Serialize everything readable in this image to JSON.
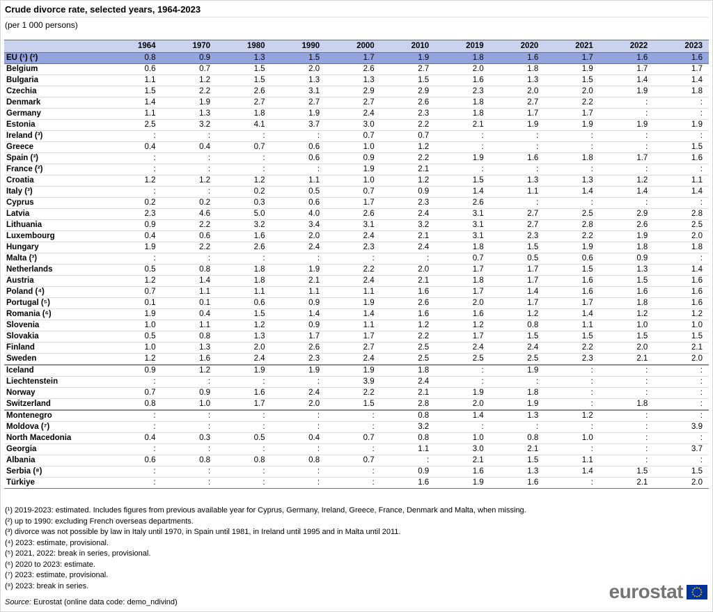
{
  "header": {
    "title": "Crude divorce rate, selected years, 1964-2023",
    "subtitle": "(per 1 000 persons)"
  },
  "chart_data": {
    "type": "table",
    "unit": "per 1 000 persons",
    "missing_symbol": ":",
    "columns": [
      "1964",
      "1970",
      "1980",
      "1990",
      "2000",
      "2010",
      "2019",
      "2020",
      "2021",
      "2022",
      "2023"
    ],
    "rows": [
      {
        "label": "EU (¹) (²)",
        "highlight": true,
        "values": [
          "0.8",
          "0.9",
          "1.3",
          "1.5",
          "1.7",
          "1.9",
          "1.8",
          "1.6",
          "1.7",
          "1.6",
          "1.6"
        ]
      },
      {
        "label": "Belgium",
        "values": [
          "0.6",
          "0.7",
          "1.5",
          "2.0",
          "2.6",
          "2.7",
          "2.0",
          "1.8",
          "1.9",
          "1.7",
          "1.7"
        ]
      },
      {
        "label": "Bulgaria",
        "values": [
          "1.1",
          "1.2",
          "1.5",
          "1.3",
          "1.3",
          "1.5",
          "1.6",
          "1.3",
          "1.5",
          "1.4",
          "1.4"
        ]
      },
      {
        "label": "Czechia",
        "values": [
          "1.5",
          "2.2",
          "2.6",
          "3.1",
          "2.9",
          "2.9",
          "2.3",
          "2.0",
          "2.0",
          "1.9",
          "1.8"
        ]
      },
      {
        "label": "Denmark",
        "values": [
          "1.4",
          "1.9",
          "2.7",
          "2.7",
          "2.7",
          "2.6",
          "1.8",
          "2.7",
          "2.2",
          ":",
          ":"
        ]
      },
      {
        "label": "Germany",
        "values": [
          "1.1",
          "1.3",
          "1.8",
          "1.9",
          "2.4",
          "2.3",
          "1.8",
          "1.7",
          "1.7",
          ":",
          ":"
        ]
      },
      {
        "label": "Estonia",
        "values": [
          "2.5",
          "3.2",
          "4.1",
          "3.7",
          "3.0",
          "2.2",
          "2.1",
          "1.9",
          "1.9",
          "1.9",
          "1.9"
        ]
      },
      {
        "label": "Ireland (³)",
        "values": [
          ":",
          ":",
          ":",
          ":",
          "0.7",
          "0.7",
          ":",
          ":",
          ":",
          ":",
          ":"
        ]
      },
      {
        "label": "Greece",
        "values": [
          "0.4",
          "0.4",
          "0.7",
          "0.6",
          "1.0",
          "1.2",
          ":",
          ":",
          ":",
          ":",
          "1.5"
        ]
      },
      {
        "label": "Spain (³)",
        "values": [
          ":",
          ":",
          ":",
          "0.6",
          "0.9",
          "2.2",
          "1.9",
          "1.6",
          "1.8",
          "1.7",
          "1.6"
        ]
      },
      {
        "label": "France (²)",
        "values": [
          ":",
          ":",
          ":",
          ":",
          "1.9",
          "2.1",
          ":",
          ":",
          ":",
          ":",
          ":"
        ]
      },
      {
        "label": "Croatia",
        "values": [
          "1.2",
          "1.2",
          "1.2",
          "1.1",
          "1.0",
          "1.2",
          "1.5",
          "1.3",
          "1.3",
          "1.2",
          "1.1"
        ]
      },
      {
        "label": "Italy (³)",
        "values": [
          ":",
          ":",
          "0.2",
          "0.5",
          "0.7",
          "0.9",
          "1.4",
          "1.1",
          "1.4",
          "1.4",
          "1.4"
        ]
      },
      {
        "label": "Cyprus",
        "values": [
          "0.2",
          "0.2",
          "0.3",
          "0.6",
          "1.7",
          "2.3",
          "2.6",
          ":",
          ":",
          ":",
          ":"
        ]
      },
      {
        "label": "Latvia",
        "values": [
          "2.3",
          "4.6",
          "5.0",
          "4.0",
          "2.6",
          "2.4",
          "3.1",
          "2.7",
          "2.5",
          "2.9",
          "2.8"
        ]
      },
      {
        "label": "Lithuania",
        "values": [
          "0.9",
          "2.2",
          "3.2",
          "3.4",
          "3.1",
          "3.2",
          "3.1",
          "2.7",
          "2.8",
          "2.6",
          "2.5"
        ]
      },
      {
        "label": "Luxembourg",
        "values": [
          "0.4",
          "0.6",
          "1.6",
          "2.0",
          "2.4",
          "2.1",
          "3.1",
          "2.3",
          "2.2",
          "1.9",
          "2.0"
        ]
      },
      {
        "label": "Hungary",
        "values": [
          "1.9",
          "2.2",
          "2.6",
          "2.4",
          "2.3",
          "2.4",
          "1.8",
          "1.5",
          "1.9",
          "1.8",
          "1.8"
        ]
      },
      {
        "label": "Malta (³)",
        "values": [
          ":",
          ":",
          ":",
          ":",
          ":",
          ":",
          "0.7",
          "0.5",
          "0.6",
          "0.9",
          ":"
        ]
      },
      {
        "label": "Netherlands",
        "values": [
          "0.5",
          "0.8",
          "1.8",
          "1.9",
          "2.2",
          "2.0",
          "1.7",
          "1.7",
          "1.5",
          "1.3",
          "1.4"
        ]
      },
      {
        "label": "Austria",
        "values": [
          "1.2",
          "1.4",
          "1.8",
          "2.1",
          "2.4",
          "2.1",
          "1.8",
          "1.7",
          "1.6",
          "1.5",
          "1.6"
        ]
      },
      {
        "label": "Poland (⁴)",
        "values": [
          "0.7",
          "1.1",
          "1.1",
          "1.1",
          "1.1",
          "1.6",
          "1.7",
          "1.4",
          "1.6",
          "1.6",
          "1.6"
        ]
      },
      {
        "label": "Portugal (⁵)",
        "values": [
          "0.1",
          "0.1",
          "0.6",
          "0.9",
          "1.9",
          "2.6",
          "2.0",
          "1.7",
          "1.7",
          "1.8",
          "1.6"
        ]
      },
      {
        "label": "Romania (⁶)",
        "values": [
          "1.9",
          "0.4",
          "1.5",
          "1.4",
          "1.4",
          "1.6",
          "1.6",
          "1.2",
          "1.4",
          "1.2",
          "1.2"
        ]
      },
      {
        "label": "Slovenia",
        "values": [
          "1.0",
          "1.1",
          "1.2",
          "0.9",
          "1.1",
          "1.2",
          "1.2",
          "0.8",
          "1.1",
          "1.0",
          "1.0"
        ]
      },
      {
        "label": "Slovakia",
        "values": [
          "0.5",
          "0.8",
          "1.3",
          "1.7",
          "1.7",
          "2.2",
          "1.7",
          "1.5",
          "1.5",
          "1.5",
          "1.5"
        ]
      },
      {
        "label": "Finland",
        "values": [
          "1.0",
          "1.3",
          "2.0",
          "2.6",
          "2.7",
          "2.5",
          "2.4",
          "2.4",
          "2.2",
          "2.0",
          "2.1"
        ]
      },
      {
        "label": "Sweden",
        "group_end": true,
        "values": [
          "1.2",
          "1.6",
          "2.4",
          "2.3",
          "2.4",
          "2.5",
          "2.5",
          "2.5",
          "2.3",
          "2.1",
          "2.0"
        ]
      },
      {
        "label": "Iceland",
        "values": [
          "0.9",
          "1.2",
          "1.9",
          "1.9",
          "1.9",
          "1.8",
          ":",
          "1.9",
          ":",
          ":",
          ":"
        ]
      },
      {
        "label": "Liechtenstein",
        "values": [
          ":",
          ":",
          ":",
          ":",
          "3.9",
          "2.4",
          ":",
          ":",
          ":",
          ":",
          ":"
        ]
      },
      {
        "label": "Norway",
        "values": [
          "0.7",
          "0.9",
          "1.6",
          "2.4",
          "2.2",
          "2.1",
          "1.9",
          "1.8",
          ":",
          ":",
          ":"
        ]
      },
      {
        "label": "Switzerland",
        "group_end": true,
        "values": [
          "0.8",
          "1.0",
          "1.7",
          "2.0",
          "1.5",
          "2.8",
          "2.0",
          "1.9",
          ":",
          "1.8",
          ":"
        ]
      },
      {
        "label": "Montenegro",
        "values": [
          ":",
          ":",
          ":",
          ":",
          ":",
          "0.8",
          "1.4",
          "1.3",
          "1.2",
          ":",
          ":"
        ]
      },
      {
        "label": "Moldova (⁷)",
        "values": [
          ":",
          ":",
          ":",
          ":",
          ":",
          "3.2",
          ":",
          ":",
          ":",
          ":",
          "3.9"
        ]
      },
      {
        "label": "North Macedonia",
        "values": [
          "0.4",
          "0.3",
          "0.5",
          "0.4",
          "0.7",
          "0.8",
          "1.0",
          "0.8",
          "1.0",
          ":",
          ":"
        ]
      },
      {
        "label": "Georgia",
        "values": [
          ":",
          ":",
          ":",
          ":",
          ":",
          "1.1",
          "3.0",
          "2.1",
          ":",
          ":",
          "3.7"
        ]
      },
      {
        "label": "Albania",
        "values": [
          "0.6",
          "0.8",
          "0.8",
          "0.8",
          "0.7",
          ":",
          "2.1",
          "1.5",
          "1.1",
          ":",
          ":"
        ]
      },
      {
        "label": "Serbia (⁸)",
        "values": [
          ":",
          ":",
          ":",
          ":",
          ":",
          "0.9",
          "1.6",
          "1.3",
          "1.4",
          "1.5",
          "1.5"
        ]
      },
      {
        "label": "Türkiye",
        "values": [
          ":",
          ":",
          ":",
          ":",
          ":",
          "1.6",
          "1.9",
          "1.6",
          ":",
          "2.1",
          "2.0"
        ]
      }
    ]
  },
  "footnotes": [
    "(¹) 2019-2023: estimated. Includes figures from previous available year for Cyprus, Germany, Ireland, Greece, France, Denmark and Malta, when missing.",
    "(²) up to 1990: excluding French overseas departments.",
    "(³) divorce was not possible by law in Italy until 1970, in Spain until 1981, in Ireland until 1995 and in Malta until 2011.",
    "(⁴) 2023: estimate, provisional.",
    "(⁵) 2021, 2022: break in series, provisional.",
    "(⁶) 2020 to 2023: estimate.",
    "(⁷) 2023: estimate, provisional.",
    "(⁸) 2023: break in series."
  ],
  "source": {
    "label": "Source:",
    "text": " Eurostat (online data code: demo_ndivind)"
  },
  "logo": {
    "text": "eurostat"
  },
  "colors": {
    "header_bg": "#c9d3ee",
    "eu_row_bg": "#94a4dc",
    "brand_gray": "#747474",
    "flag_blue": "#003399",
    "star_yellow": "#ffcc00"
  }
}
